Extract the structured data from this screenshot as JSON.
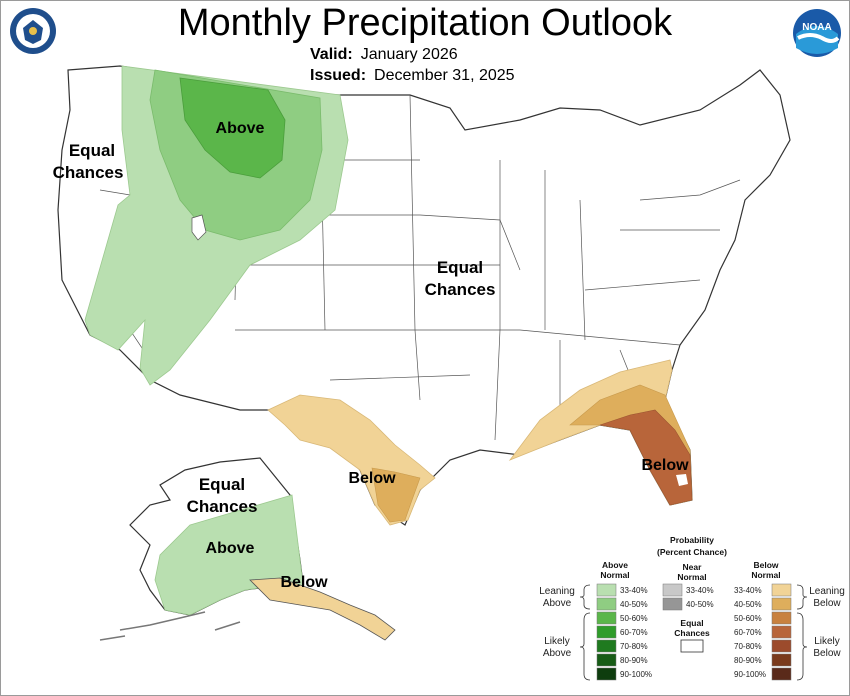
{
  "title": "Monthly Precipitation Outlook",
  "valid": {
    "label": "Valid:",
    "value": "January 2026"
  },
  "issued": {
    "label": "Issued:",
    "value": "December 31, 2025"
  },
  "logos": {
    "left": "doc-seal-icon",
    "right": "noaa-logo-icon"
  },
  "regions": {
    "west_ec": [
      "Equal",
      "Chances"
    ],
    "central_ec": [
      "Equal",
      "Chances"
    ],
    "north_above": "Above",
    "texas_below": "Below",
    "florida_below": "Below",
    "alaska_ec": [
      "Equal",
      "Chances"
    ],
    "alaska_above": "Above",
    "alaska_below": "Below"
  },
  "legend": {
    "title": [
      "Probability",
      "(Percent Chance)"
    ],
    "above_header": [
      "Above",
      "Normal"
    ],
    "near_header": [
      "Near",
      "Normal"
    ],
    "below_header": [
      "Below",
      "Normal"
    ],
    "above_ranges": [
      "33-40%",
      "40-50%",
      "50-60%",
      "60-70%",
      "70-80%",
      "80-90%",
      "90-100%"
    ],
    "near_ranges": [
      "33-40%",
      "40-50%"
    ],
    "below_ranges": [
      "33-40%",
      "40-50%",
      "50-60%",
      "60-70%",
      "70-80%",
      "80-90%",
      "90-100%"
    ],
    "equal_chances": [
      "Equal",
      "Chances"
    ],
    "leaning_above": [
      "Leaning",
      "Above"
    ],
    "likely_above": [
      "Likely",
      "Above"
    ],
    "leaning_below": [
      "Leaning",
      "Below"
    ],
    "likely_below": [
      "Likely",
      "Below"
    ],
    "colors": {
      "above": [
        "#b9dfb0",
        "#8fcd82",
        "#5bb64a",
        "#2f9c2a",
        "#1f7a1f",
        "#175c16",
        "#0e3d0e"
      ],
      "near": [
        "#c8c8c8",
        "#969696"
      ],
      "below": [
        "#f1d396",
        "#deae5c",
        "#c8813f",
        "#b8653a",
        "#9c4b2c",
        "#7a3a1c",
        "#5a2a1a"
      ]
    }
  }
}
